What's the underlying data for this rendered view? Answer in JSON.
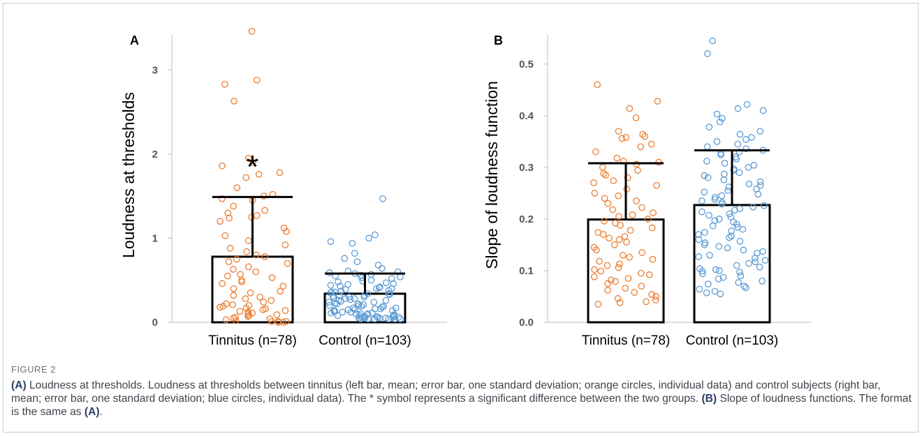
{
  "chart_data": [
    {
      "panel": "A",
      "type": "bar",
      "ylabel": "Loudness at thresholds",
      "ylim": [
        0,
        3.5
      ],
      "yticks": [
        0,
        1,
        2,
        3
      ],
      "categories": [
        "Tinnitus (n=78)",
        "Control (n=103)"
      ],
      "means": [
        0.78,
        0.34
      ],
      "sd_upper": [
        1.49,
        0.58
      ],
      "significance_marker": "*",
      "individual_points": [
        {
          "color": "#ED7D31",
          "values": [
            3.46,
            2.88,
            2.83,
            2.63,
            1.95,
            1.9,
            1.86,
            1.78,
            1.76,
            1.72,
            1.6,
            1.52,
            1.5,
            1.47,
            1.45,
            1.38,
            1.33,
            1.3,
            1.27,
            1.25,
            1.24,
            1.2,
            1.12,
            1.08,
            1.03,
            0.97,
            0.92,
            0.88,
            0.84,
            0.8,
            0.78,
            0.75,
            0.72,
            0.7,
            0.66,
            0.63,
            0.6,
            0.57,
            0.55,
            0.53,
            0.5,
            0.48,
            0.46,
            0.43,
            0.4,
            0.37,
            0.35,
            0.32,
            0.3,
            0.28,
            0.26,
            0.24,
            0.22,
            0.21,
            0.2,
            0.19,
            0.18,
            0.17,
            0.16,
            0.15,
            0.14,
            0.13,
            0.12,
            0.11,
            0.1,
            0.09,
            0.08,
            0.07,
            0.06,
            0.05,
            0.04,
            0.03,
            0.02,
            0.01,
            0.01,
            0.01,
            0.0,
            0.0
          ]
        },
        {
          "color": "#5B9BD5",
          "values": [
            1.47,
            1.04,
            1.0,
            0.96,
            0.94,
            0.82,
            0.76,
            0.72,
            0.68,
            0.64,
            0.61,
            0.6,
            0.59,
            0.58,
            0.57,
            0.56,
            0.55,
            0.54,
            0.53,
            0.52,
            0.5,
            0.49,
            0.48,
            0.47,
            0.46,
            0.45,
            0.44,
            0.43,
            0.42,
            0.41,
            0.4,
            0.4,
            0.39,
            0.38,
            0.37,
            0.36,
            0.36,
            0.35,
            0.34,
            0.34,
            0.33,
            0.32,
            0.32,
            0.31,
            0.3,
            0.3,
            0.29,
            0.28,
            0.28,
            0.27,
            0.26,
            0.26,
            0.25,
            0.24,
            0.24,
            0.23,
            0.22,
            0.22,
            0.21,
            0.2,
            0.2,
            0.19,
            0.19,
            0.18,
            0.17,
            0.17,
            0.16,
            0.16,
            0.15,
            0.15,
            0.14,
            0.14,
            0.13,
            0.13,
            0.12,
            0.12,
            0.11,
            0.11,
            0.1,
            0.1,
            0.1,
            0.09,
            0.09,
            0.08,
            0.08,
            0.08,
            0.07,
            0.07,
            0.07,
            0.06,
            0.06,
            0.06,
            0.06,
            0.05,
            0.05,
            0.05,
            0.05,
            0.04,
            0.04,
            0.04,
            0.04,
            0.04,
            0.04
          ]
        }
      ]
    },
    {
      "panel": "B",
      "type": "bar",
      "ylabel": "Slope of loudness function",
      "ylim": [
        0,
        0.57
      ],
      "yticks": [
        0.0,
        0.1,
        0.2,
        0.3,
        0.4,
        0.5
      ],
      "categories": [
        "Tinnitus (n=78)",
        "Control (n=103)"
      ],
      "means": [
        0.199,
        0.227
      ],
      "sd_upper": [
        0.308,
        0.333
      ],
      "individual_points": [
        {
          "color": "#ED7D31",
          "values": [
            0.46,
            0.428,
            0.414,
            0.396,
            0.37,
            0.364,
            0.36,
            0.358,
            0.356,
            0.345,
            0.34,
            0.33,
            0.318,
            0.312,
            0.31,
            0.306,
            0.3,
            0.294,
            0.288,
            0.285,
            0.28,
            0.274,
            0.27,
            0.265,
            0.258,
            0.25,
            0.245,
            0.24,
            0.235,
            0.23,
            0.222,
            0.218,
            0.212,
            0.208,
            0.205,
            0.2,
            0.196,
            0.192,
            0.188,
            0.183,
            0.178,
            0.174,
            0.17,
            0.166,
            0.163,
            0.16,
            0.155,
            0.15,
            0.145,
            0.14,
            0.135,
            0.13,
            0.126,
            0.122,
            0.118,
            0.113,
            0.11,
            0.106,
            0.102,
            0.099,
            0.095,
            0.092,
            0.088,
            0.085,
            0.082,
            0.079,
            0.075,
            0.07,
            0.066,
            0.062,
            0.058,
            0.054,
            0.05,
            0.046,
            0.043,
            0.04,
            0.038,
            0.035
          ]
        },
        {
          "color": "#5B9BD5",
          "values": [
            0.545,
            0.52,
            0.422,
            0.414,
            0.41,
            0.403,
            0.395,
            0.388,
            0.378,
            0.37,
            0.364,
            0.358,
            0.354,
            0.35,
            0.345,
            0.34,
            0.336,
            0.333,
            0.33,
            0.327,
            0.324,
            0.32,
            0.316,
            0.312,
            0.308,
            0.304,
            0.3,
            0.297,
            0.294,
            0.29,
            0.287,
            0.284,
            0.28,
            0.276,
            0.272,
            0.268,
            0.265,
            0.262,
            0.258,
            0.255,
            0.252,
            0.248,
            0.245,
            0.242,
            0.238,
            0.235,
            0.232,
            0.229,
            0.226,
            0.223,
            0.22,
            0.217,
            0.214,
            0.21,
            0.207,
            0.204,
            0.2,
            0.197,
            0.194,
            0.19,
            0.187,
            0.184,
            0.18,
            0.177,
            0.174,
            0.17,
            0.167,
            0.164,
            0.16,
            0.157,
            0.154,
            0.15,
            0.147,
            0.144,
            0.14,
            0.137,
            0.134,
            0.13,
            0.127,
            0.124,
            0.12,
            0.117,
            0.114,
            0.11,
            0.107,
            0.104,
            0.1,
            0.097,
            0.094,
            0.09,
            0.087,
            0.084,
            0.08,
            0.077,
            0.074,
            0.07,
            0.067,
            0.064,
            0.06,
            0.057,
            0.055,
            0.099,
            0.102
          ]
        }
      ]
    }
  ],
  "caption": {
    "figure_label": "FIGURE 2",
    "part_a_label": "(A)",
    "part_a_text": " Loudness at thresholds. Loudness at thresholds between tinnitus (left bar, mean; error bar, one standard deviation; orange circles, individual data) and control subjects (right bar, mean; error bar, one standard deviation; blue circles, individual data). The * symbol represents a significant difference between the two groups. ",
    "part_b_label": "(B)",
    "part_b_text": " Slope of loudness functions. The format is the same as ",
    "part_b_ref": "(A)",
    "part_b_end": "."
  }
}
